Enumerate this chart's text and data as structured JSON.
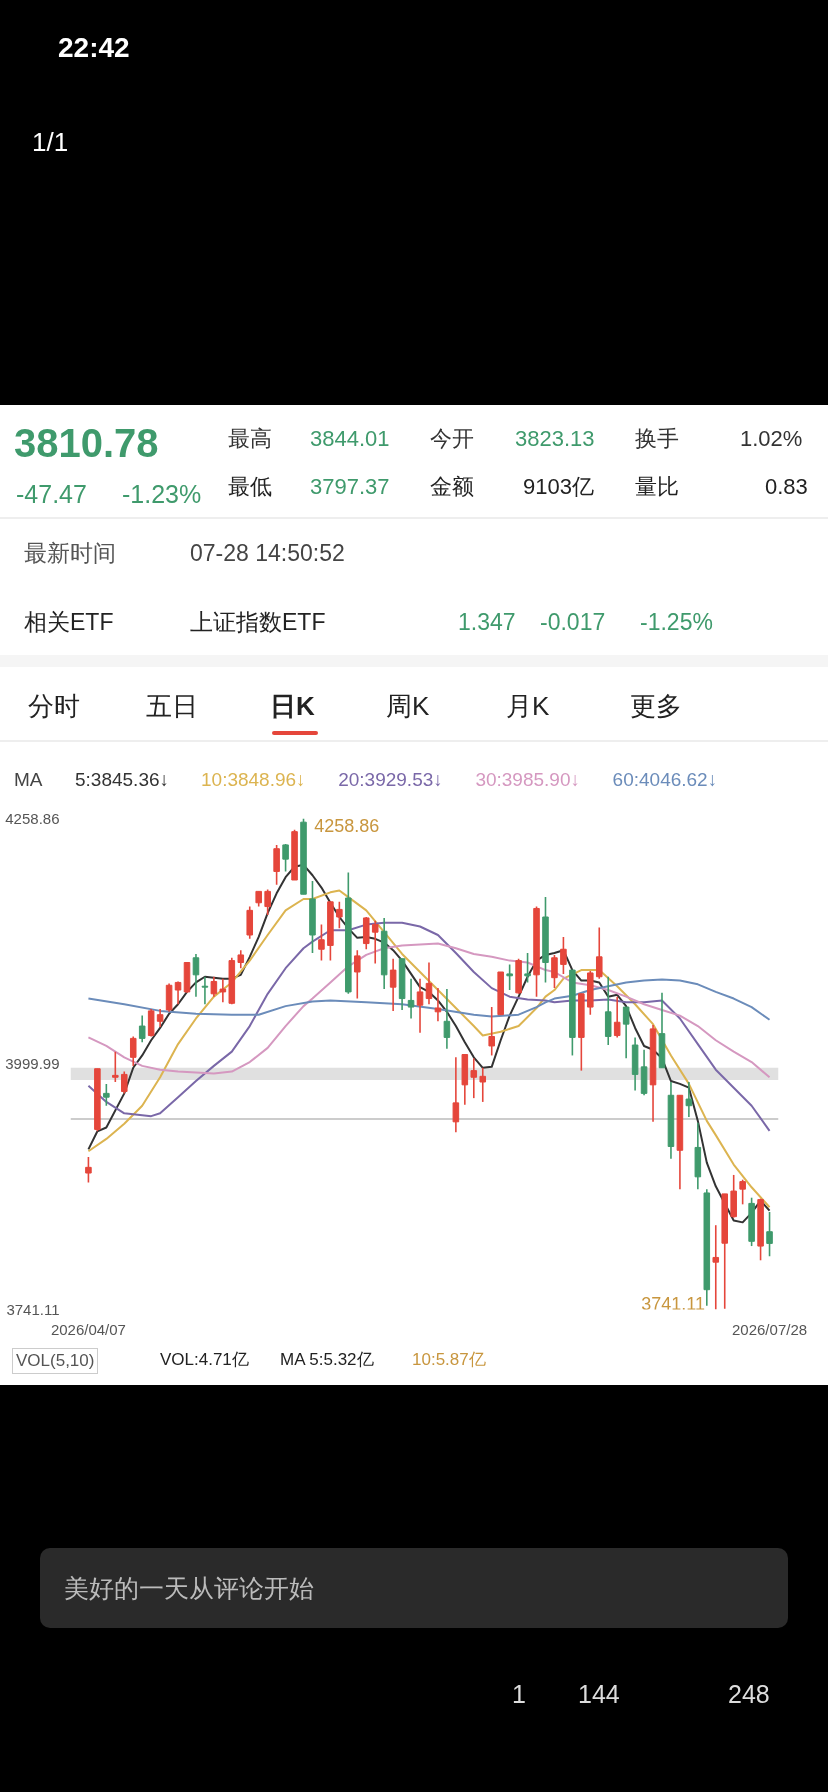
{
  "chart_data": {
    "type": "candlestick",
    "categories": [
      "2026/04/07",
      null,
      null,
      null,
      null,
      null,
      null,
      null,
      null,
      null,
      null,
      null,
      null,
      null,
      null,
      null,
      null,
      null,
      null,
      null,
      null,
      null,
      null,
      null,
      null,
      null,
      null,
      null,
      null,
      null,
      null,
      null,
      null,
      null,
      null,
      null,
      null,
      null,
      null,
      null,
      null,
      null,
      null,
      null,
      null,
      null,
      null,
      null,
      null,
      null,
      null,
      null,
      null,
      null,
      null,
      null,
      null,
      null,
      null,
      null,
      null,
      null,
      null,
      null,
      null,
      null,
      null,
      null,
      null,
      null,
      null,
      null,
      null,
      null,
      null,
      null,
      "2026/07/28"
    ],
    "ohlc": [
      [
        3885,
        3902,
        3875,
        3891
      ],
      [
        3931,
        3995,
        3929,
        3995
      ],
      [
        3969,
        3979,
        3956,
        3965
      ],
      [
        3986,
        4013,
        3981,
        3988
      ],
      [
        3971,
        3992,
        3969,
        3989
      ],
      [
        4007,
        4029,
        3998,
        4027
      ],
      [
        4040,
        4051,
        4023,
        4027
      ],
      [
        4030,
        4058,
        4029,
        4056
      ],
      [
        4045,
        4058,
        4039,
        4052
      ],
      [
        4057,
        4085,
        4055,
        4083
      ],
      [
        4078,
        4087,
        4063,
        4086
      ],
      [
        4076,
        4107,
        4075,
        4107
      ],
      [
        4112,
        4116,
        4071,
        4094
      ],
      [
        4082,
        4092,
        4063,
        4081
      ],
      [
        4074,
        4092,
        4071,
        4087
      ],
      [
        4076,
        4090,
        4065,
        4079
      ],
      [
        4064,
        4112,
        4063,
        4109
      ],
      [
        4107,
        4120,
        4101,
        4115
      ],
      [
        4136,
        4166,
        4132,
        4162
      ],
      [
        4170,
        4182,
        4166,
        4182
      ],
      [
        4166,
        4184,
        4157,
        4182
      ],
      [
        4203,
        4231,
        4189,
        4227
      ],
      [
        4231,
        4232,
        4203,
        4216
      ],
      [
        4194,
        4247,
        4194,
        4245
      ],
      [
        4255,
        4258.86,
        4179,
        4179
      ],
      [
        4174,
        4193,
        4117,
        4136
      ],
      [
        4121,
        4147,
        4109,
        4131
      ],
      [
        4125,
        4171,
        4109,
        4171
      ],
      [
        4155,
        4171,
        4143,
        4163
      ],
      [
        4175,
        4202,
        4074,
        4076
      ],
      [
        4097,
        4120,
        4069,
        4114
      ],
      [
        4127,
        4155,
        4121,
        4154
      ],
      [
        4139,
        4151,
        4106,
        4147
      ],
      [
        4140,
        4154,
        4079,
        4094
      ],
      [
        4081,
        4111,
        4056,
        4099
      ],
      [
        4111,
        4111,
        4057,
        4069
      ],
      [
        4067,
        4090,
        4048,
        4060
      ],
      [
        4062,
        4090,
        4033,
        4076
      ],
      [
        4069,
        4107,
        4063,
        4085
      ],
      [
        4055,
        4080,
        4045,
        4059
      ],
      [
        4045,
        4079,
        4016,
        4028
      ],
      [
        3939,
        4007,
        3928,
        3959
      ],
      [
        3978,
        4010,
        3957,
        4010
      ],
      [
        3986,
        4006,
        3964,
        3993
      ],
      [
        3981,
        3996,
        3960,
        3987
      ],
      [
        4019,
        4060,
        4009,
        4029
      ],
      [
        4052,
        4097,
        4052,
        4097
      ],
      [
        4095,
        4105,
        4078,
        4093
      ],
      [
        4075,
        4111,
        4074,
        4109
      ],
      [
        4095,
        4117,
        4086,
        4093
      ],
      [
        4094,
        4166,
        4071,
        4164
      ],
      [
        4155,
        4176,
        4086,
        4107
      ],
      [
        4091,
        4115,
        4080,
        4112
      ],
      [
        4105,
        4134,
        4095,
        4121
      ],
      [
        4099,
        4099,
        4009,
        4028
      ],
      [
        4028,
        4074,
        3993,
        4074
      ],
      [
        4060,
        4098,
        4052,
        4096
      ],
      [
        4092,
        4144,
        4090,
        4113
      ],
      [
        4055,
        4092,
        4020,
        4029
      ],
      [
        4030,
        4071,
        4028,
        4044
      ],
      [
        4060,
        4060,
        4006,
        4042
      ],
      [
        4020,
        4028,
        3972,
        3989
      ],
      [
        3997,
        4015,
        3967,
        3969
      ],
      [
        3978,
        4041,
        3939,
        4037
      ],
      [
        4032,
        4075,
        3996,
        3996
      ],
      [
        3967,
        3981,
        3900,
        3913
      ],
      [
        3909,
        3967,
        3868,
        3967
      ],
      [
        3963,
        3981,
        3944,
        3956
      ],
      [
        3912,
        3938,
        3868,
        3881
      ],
      [
        3864,
        3868,
        3745,
        3762
      ],
      [
        3791,
        3830,
        3741.11,
        3796
      ],
      [
        3811,
        3863,
        3742,
        3863
      ],
      [
        3839,
        3883,
        3838,
        3866
      ],
      [
        3868,
        3878,
        3852,
        3876
      ],
      [
        3853,
        3859,
        3808,
        3813
      ],
      [
        3808,
        3858,
        3793,
        3857
      ],
      [
        3823.13,
        3844.01,
        3797.37,
        3810.78
      ]
    ],
    "series": [
      {
        "type": "line",
        "name": "5:3845.36↓",
        "color": "#333333",
        "values": [
          3910,
          3929,
          3933,
          null,
          3969,
          3996,
          4009,
          4025,
          4038,
          4053,
          4063,
          4076,
          4086,
          4092,
          4091,
          4090,
          4090,
          4094,
          4113,
          4134,
          4159,
          4180,
          4197,
          4208,
          4210,
          4199,
          4186,
          4170,
          4155,
          4143,
          4133,
          4134,
          4132,
          4128,
          4120,
          4109,
          4095,
          4081,
          4076,
          4067,
          4055,
          4040,
          4023,
          4007,
          3996,
          3997,
          4025,
          4051,
          4071,
          4092,
          4109,
          4115,
          4117,
          4120,
          4099,
          4088,
          4088,
          4086,
          4071,
          4073,
          4061,
          4038,
          4019,
          4015,
          4006,
          3982,
          3979,
          3975,
          3940,
          3896,
          3871,
          null,
          3835,
          3833,
          3843,
          3856,
          3845.36
        ]
      },
      {
        "type": "line",
        "name": "10:3848.96↓",
        "color": "#dcb450",
        "values": [
          3908,
          null,
          3921,
          null,
          3937,
          null,
          3956,
          null,
          3986,
          null,
          4021,
          null,
          4048,
          null,
          4071,
          null,
          4086,
          null,
          4109,
          null,
          4136,
          null,
          4162,
          null,
          4174,
          4174,
          null,
          4181,
          4183,
          4176,
          null,
          4162,
          null,
          4139,
          null,
          4116,
          null,
          4097,
          null,
          4078,
          null,
          4059,
          null,
          4040,
          4030,
          null,
          4034,
          null,
          4040,
          null,
          4059,
          4071,
          4078,
          4090,
          null,
          4099,
          null,
          4099,
          null,
          4082,
          null,
          4063,
          null,
          4042,
          null,
          4009,
          null,
          3979,
          null,
          3940,
          3925,
          null,
          3894,
          null,
          3870,
          null,
          3848.96
        ]
      },
      {
        "type": "line",
        "name": "20:3929.53↓",
        "color": "#7a68a8",
        "values": [
          3977,
          null,
          3960,
          null,
          3948,
          null,
          null,
          3945,
          3948,
          null,
          3965,
          null,
          3982,
          null,
          3998,
          null,
          4013,
          null,
          4040,
          null,
          4074,
          null,
          4101,
          null,
          4122,
          4129,
          null,
          4141,
          null,
          4141,
          null,
          4147,
          null,
          4149,
          null,
          4149,
          null,
          4145,
          null,
          4136,
          null,
          4117,
          null,
          4097,
          null,
          4080,
          null,
          4071,
          null,
          4068,
          null,
          4067,
          4065,
          null,
          4067,
          null,
          4067,
          null,
          4068,
          null,
          4065,
          null,
          4065,
          null,
          4067,
          null,
          4048,
          null,
          4021,
          null,
          3994,
          null,
          3975,
          null,
          3956,
          null,
          3929.53
        ]
      },
      {
        "type": "line",
        "name": "30:3985.90↓",
        "color": "#d598c0",
        "values": [
          4028,
          null,
          4019,
          null,
          4007,
          null,
          3998,
          null,
          3994,
          null,
          3992,
          null,
          3991,
          null,
          3990,
          null,
          3992,
          null,
          4002,
          null,
          4017,
          null,
          4040,
          null,
          4061,
          4069,
          null,
          4086,
          null,
          4103,
          null,
          4115,
          null,
          4122,
          null,
          4125,
          null,
          4126,
          null,
          4127,
          null,
          4122,
          null,
          4116,
          null,
          4113,
          null,
          4109,
          null,
          4107,
          null,
          4099,
          4097,
          null,
          4086,
          null,
          4083,
          null,
          4078,
          null,
          4071,
          null,
          4063,
          null,
          4057,
          null,
          4051,
          null,
          4040,
          null,
          4025,
          null,
          4013,
          null,
          4002,
          null,
          3985.9
        ]
      },
      {
        "type": "line",
        "name": "60:4046.62↓",
        "color": "#6b8cba",
        "values": [
          4069,
          null,
          null,
          null,
          4063,
          null,
          null,
          null,
          4056,
          null,
          null,
          null,
          4053,
          null,
          null,
          null,
          4052,
          null,
          null,
          4052,
          null,
          null,
          4061,
          null,
          null,
          4066,
          null,
          4067,
          null,
          null,
          null,
          4065,
          null,
          null,
          null,
          4063,
          null,
          null,
          null,
          4058,
          null,
          null,
          null,
          4052,
          null,
          4050,
          null,
          null,
          4052,
          null,
          4060,
          4065,
          4069,
          null,
          4072,
          null,
          4078,
          null,
          4082,
          null,
          4086,
          null,
          4088,
          null,
          4089,
          null,
          4088,
          null,
          4084,
          null,
          4076,
          null,
          4069,
          null,
          4060,
          null,
          4046.62
        ]
      }
    ],
    "ylim": [
      3741.11,
      4258.86
    ],
    "yticks": [
      4258.86,
      3999.99,
      3741.11
    ],
    "grid": false,
    "legend": "top",
    "line_style": "solid",
    "marker": "none",
    "bands": [
      {
        "axis": "y",
        "from": 3983,
        "to": 3996,
        "color": "#dddddd"
      }
    ],
    "ref_lines": [
      {
        "axis": "y",
        "value": 3942,
        "color": "#cccccc"
      }
    ],
    "annotations": [
      "22:42",
      "1/1",
      "3810.78",
      "-47.47",
      "-1.23%",
      "最高",
      "3844.01",
      "今开",
      "3823.13",
      "换手",
      "1.02%",
      "最低",
      "3797.37",
      "金额",
      "9103亿",
      "量比",
      "0.83",
      "最新时间",
      "07-28 14:50:52",
      "相关ETF",
      "上证指数ETF",
      "1.347",
      "-0.017",
      "-1.25%",
      "分时",
      "五日",
      "日K",
      "周K",
      "月K",
      "更多",
      "MA",
      "VOL(5,10)",
      "VOL:4.71亿",
      "MA 5:5.32亿",
      "10:5.87亿",
      "美好的一天从评论开始",
      "1",
      "144",
      "248",
      "4258.86",
      "3741.11"
    ]
  }
}
